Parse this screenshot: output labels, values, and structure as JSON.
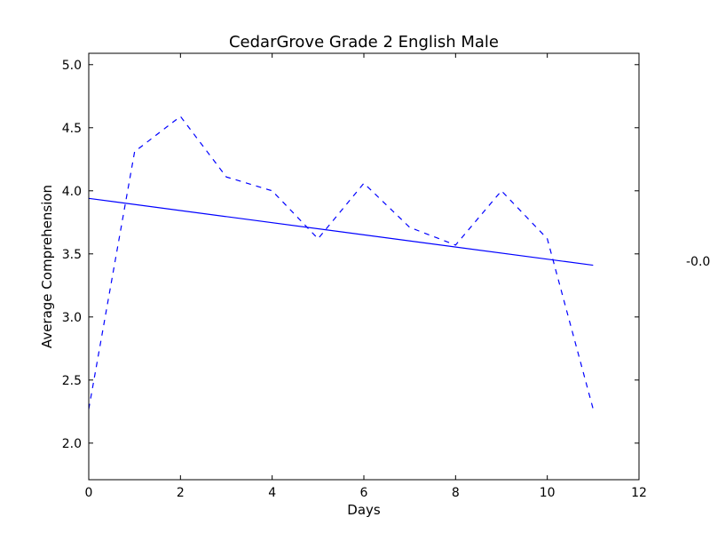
{
  "chart_data": {
    "type": "line",
    "title": "CedarGrove Grade 2 English Male",
    "xlabel": "Days",
    "ylabel": "Average Comprehension",
    "xlim": [
      0,
      12
    ],
    "ylim": [
      1.71,
      5.09
    ],
    "xticks": [
      0,
      2,
      4,
      6,
      8,
      10,
      12
    ],
    "yticks": [
      2.0,
      2.5,
      3.0,
      3.5,
      4.0,
      4.5,
      5.0
    ],
    "ytick_labels": [
      "2.0",
      "2.5",
      "3.0",
      "3.5",
      "4.0",
      "4.5",
      "5.0"
    ],
    "grid": false,
    "series": [
      {
        "style": "dashed",
        "color": "#0000ff",
        "x": [
          0,
          1,
          2,
          3,
          4,
          5,
          6,
          7,
          8,
          9,
          10,
          11
        ],
        "y": [
          2.27,
          4.31,
          4.59,
          4.11,
          4.0,
          3.62,
          4.06,
          3.71,
          3.57,
          4.0,
          3.62,
          2.27
        ]
      },
      {
        "style": "solid",
        "color": "#0000ff",
        "x": [
          0,
          11
        ],
        "y": [
          3.94,
          3.41
        ]
      }
    ],
    "annotation": "-0.0"
  }
}
